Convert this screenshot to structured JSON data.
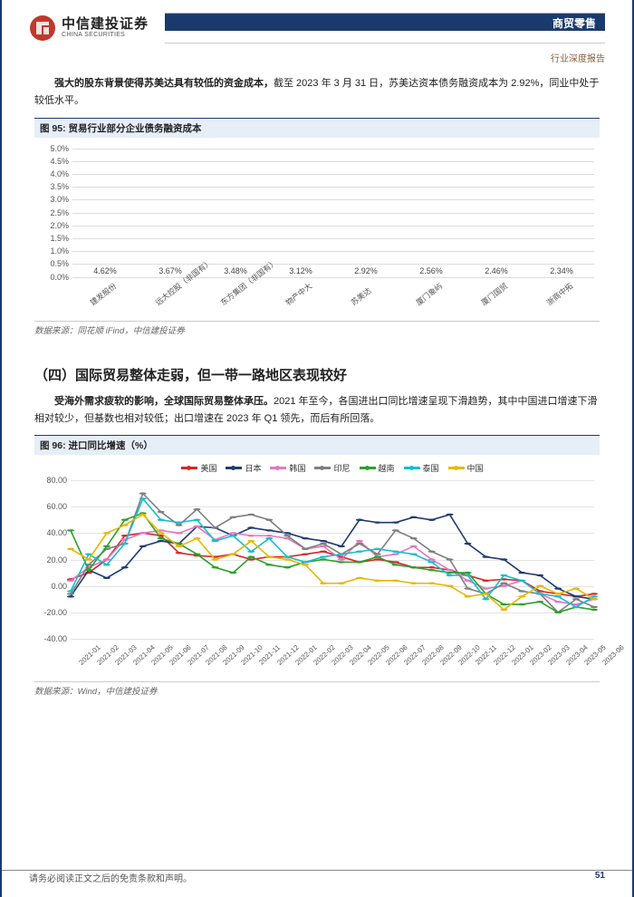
{
  "brand": {
    "cn": "中信建投证券",
    "en": "CHINA SECURITIES",
    "logo_color": "#c0392b"
  },
  "header": {
    "category": "商贸零售",
    "subtitle": "行业深度报告",
    "bar_color": "#1a3a6e"
  },
  "para1_bold": "强大的股东背景使得苏美达具有较低的资金成本，",
  "para1_rest": "截至 2023 年 3 月 31 日，苏美达资本债务融资成本为 2.92%，同业中处于较低水平。",
  "fig95": {
    "title": "图 95: 贸易行业部分企业债务融资成本",
    "source": "数据来源：同花顺 iFind，中信建投证券",
    "type": "bar",
    "categories": [
      "建发股份",
      "远大控股（非国有）",
      "东方集团（非国有）",
      "物产中大",
      "苏美达",
      "厦门象屿",
      "厦门国贸",
      "浙商中拓"
    ],
    "values": [
      4.62,
      3.67,
      3.48,
      3.12,
      2.92,
      2.56,
      2.46,
      2.34
    ],
    "bar_color": "#ef7f84",
    "ylim": [
      0,
      5.0
    ],
    "ytick_step": 0.5,
    "ytick_suffix": "%",
    "value_suffix": "%",
    "grid_color": "#dcdcdc",
    "label_fontsize": 9
  },
  "section4_title": "（四）国际贸易整体走弱，但一带一路地区表现较好",
  "para2_bold": "受海外需求疲软的影响，全球国际贸易整体承压。",
  "para2_rest": "2021 年至今，各国进出口同比增速呈现下滑趋势，其中中国进口增速下滑相对较少，但基数也相对较低；出口增速在 2023 年 Q1 领先，而后有所回落。",
  "fig96": {
    "title": "图 96: 进口同比增速（%）",
    "source": "数据来源：Wind，中信建投证券",
    "type": "line",
    "ylim": [
      -40,
      80
    ],
    "ytick_step": 20,
    "x_labels": [
      "2021-01",
      "2021-02",
      "2021-03",
      "2021-04",
      "2021-05",
      "2021-06",
      "2021-07",
      "2021-08",
      "2021-09",
      "2021-10",
      "2021-11",
      "2021-12",
      "2022-01",
      "2022-02",
      "2022-03",
      "2022-04",
      "2022-05",
      "2022-06",
      "2022-07",
      "2022-08",
      "2022-09",
      "2022-10",
      "2022-11",
      "2022-12",
      "2023-01",
      "2023-02",
      "2023-03",
      "2023-04",
      "2023-05",
      "2023-06"
    ],
    "grid_color": "#e3e3e3",
    "background_color": "#ffffff",
    "line_width": 1.6,
    "marker_radius": 1.7,
    "series": [
      {
        "name": "美国",
        "color": "#d62728",
        "values": [
          5,
          10,
          20,
          38,
          40,
          38,
          25,
          23,
          22,
          24,
          20,
          22,
          22,
          24,
          26,
          22,
          18,
          20,
          18,
          14,
          14,
          12,
          8,
          4,
          5,
          4,
          -4,
          -6,
          -8,
          -6
        ]
      },
      {
        "name": "日本",
        "color": "#1f3b72",
        "values": [
          -8,
          12,
          6,
          14,
          30,
          34,
          32,
          45,
          44,
          38,
          44,
          42,
          40,
          36,
          34,
          30,
          50,
          48,
          48,
          52,
          50,
          54,
          32,
          22,
          20,
          10,
          8,
          -2,
          -8,
          -10
        ]
      },
      {
        "name": "韩国",
        "color": "#e377c2",
        "values": [
          4,
          14,
          20,
          35,
          40,
          42,
          40,
          45,
          35,
          40,
          38,
          38,
          36,
          28,
          30,
          20,
          34,
          22,
          24,
          30,
          20,
          12,
          4,
          -2,
          0,
          4,
          -6,
          -12,
          -14,
          -10
        ]
      },
      {
        "name": "印尼",
        "color": "#7f7f7f",
        "values": [
          -6,
          16,
          28,
          32,
          70,
          56,
          46,
          58,
          44,
          52,
          54,
          50,
          38,
          28,
          32,
          24,
          32,
          24,
          42,
          36,
          26,
          20,
          -2,
          -6,
          2,
          -4,
          -6,
          -20,
          -10,
          -16
        ]
      },
      {
        "name": "越南",
        "color": "#2ca02c",
        "values": [
          42,
          12,
          30,
          50,
          55,
          36,
          32,
          24,
          14,
          10,
          22,
          16,
          14,
          18,
          20,
          18,
          18,
          22,
          16,
          14,
          12,
          10,
          10,
          -6,
          -14,
          -14,
          -12,
          -20,
          -16,
          -18
        ]
      },
      {
        "name": "泰国",
        "color": "#17becf",
        "values": [
          -4,
          24,
          16,
          32,
          66,
          50,
          48,
          50,
          34,
          38,
          26,
          36,
          22,
          18,
          22,
          24,
          26,
          28,
          26,
          24,
          18,
          8,
          8,
          -10,
          8,
          4,
          -6,
          -8,
          -16,
          -8
        ]
      },
      {
        "name": "中国",
        "color": "#e6b800",
        "values": [
          28,
          20,
          40,
          46,
          54,
          40,
          30,
          36,
          20,
          24,
          34,
          22,
          20,
          16,
          2,
          2,
          6,
          4,
          4,
          2,
          2,
          0,
          -8,
          -6,
          -18,
          -8,
          0,
          -6,
          -2,
          -10
        ]
      }
    ]
  },
  "footer": {
    "disclaimer": "请务必阅读正文之后的免责条款和声明。",
    "page": "51"
  }
}
